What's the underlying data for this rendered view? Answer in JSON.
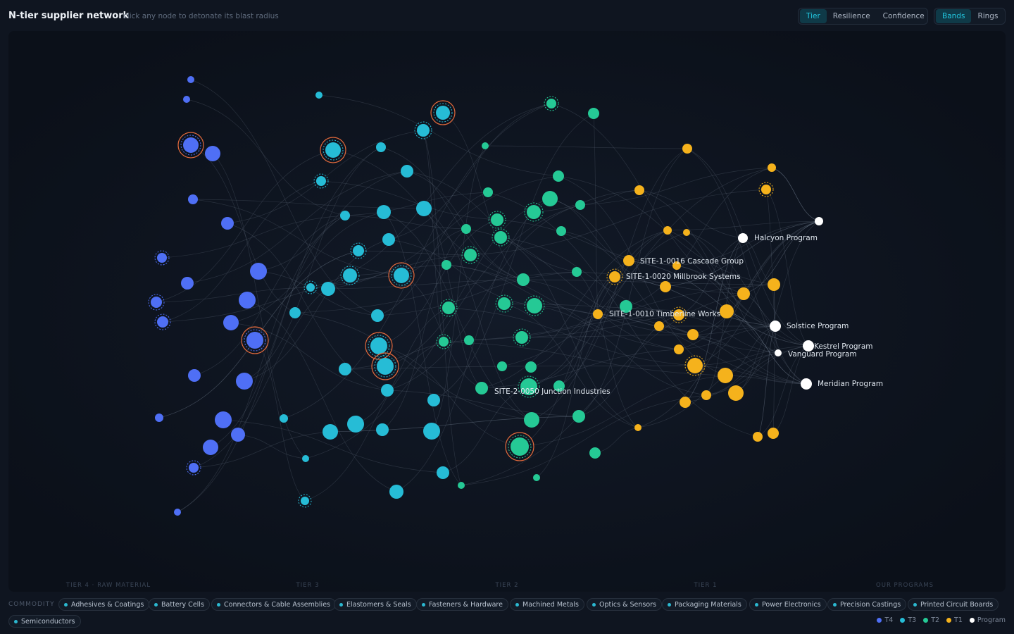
{
  "header": {
    "title": "N-tier supplier network",
    "subtitle": "click any node to detonate its blast radius"
  },
  "color_modes": [
    "Tier",
    "Resilience",
    "Confidence"
  ],
  "color_mode_active": "Tier",
  "layout_modes": [
    "Bands",
    "Rings"
  ],
  "layout_mode_active": "Bands",
  "tier_labels": [
    "TIER 4 · RAW MATERIAL",
    "TIER 3",
    "TIER 2",
    "TIER 1",
    "OUR PROGRAMS"
  ],
  "node_labels": {
    "halcyon": "Halcyon Program",
    "solstice": "Solstice Program",
    "kestrel": "Kestrel Program",
    "vanguard": "Vanguard Program",
    "meridian": "Meridian Program",
    "site_1_0016": "SITE-1-0016 Cascade Group",
    "site_1_0020": "SITE-1-0020 Millbrook Systems",
    "site_1_0010": "SITE-1-0010 Timberline Works",
    "site_2_0050": "SITE-2-0050 Junction Industries"
  },
  "commodity_label": "COMMODITY",
  "commodities": [
    "Adhesives & Coatings",
    "Battery Cells",
    "Connectors & Cable Assemblies",
    "Elastomers & Seals",
    "Fasteners & Hardware",
    "Machined Metals",
    "Optics & Sensors",
    "Packaging Materials",
    "Power Electronics",
    "Precision Castings",
    "Printed Circuit Boards",
    "Semiconductors"
  ],
  "legend": [
    {
      "label": "T4",
      "color": "#4f6ff5"
    },
    {
      "label": "T3",
      "color": "#26bcd6"
    },
    {
      "label": "T2",
      "color": "#25c995"
    },
    {
      "label": "T1",
      "color": "#f5b21c"
    },
    {
      "label": "Program",
      "color": "#ffffff"
    }
  ],
  "colors": {
    "t4": "#4f6ff5",
    "t3": "#26bcd6",
    "t2": "#25c995",
    "t1": "#f5b21c",
    "program": "#ffffff",
    "risk_ring": "#e46a3c"
  }
}
